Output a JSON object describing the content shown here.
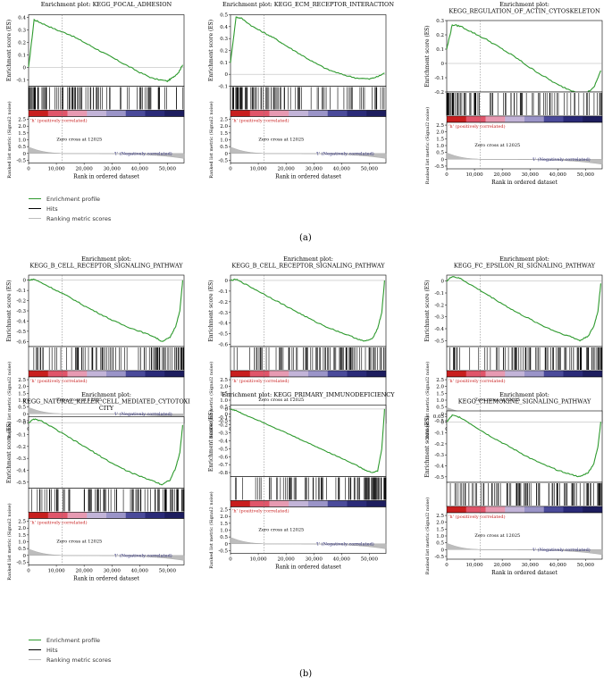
{
  "panel_labels": [
    "(a)",
    "(b)"
  ],
  "legend": {
    "items": [
      {
        "label": "Enrichment profile",
        "color": "#2e9a2e"
      },
      {
        "label": "Hits",
        "color": "#000000"
      },
      {
        "label": "Ranking metric scores",
        "color": "#bdbdbd"
      }
    ]
  },
  "common": {
    "es_ylabel": "Enrichment score (ES)",
    "rank_ylabel": "Ranked list metric (Signal2 noise)",
    "xlabel": "Rank in ordered dataset",
    "pos_label": "'h' (positively correlated)",
    "neg_label": "'l' (Negatively correlated)",
    "zero_cross": "Zero cross at 12025",
    "x_ticks": [
      "0",
      "10,000",
      "20,000",
      "30,000",
      "40,000",
      "50,000"
    ],
    "rank_ticks": [
      "2.5",
      "2.0",
      "1.5",
      "1.0",
      "0.5",
      "0",
      "-0.5"
    ]
  },
  "chart_data": [
    {
      "type": "line",
      "title_lines": [
        "Enrichment plot: KEGG_FOCAL_ADHESION"
      ],
      "ylim": [
        -0.15,
        0.42
      ],
      "yticks": [
        0.4,
        0.3,
        0.2,
        0.1,
        0,
        -0.1
      ],
      "x": [
        0,
        2000,
        5000,
        10000,
        15000,
        20000,
        25000,
        30000,
        35000,
        40000,
        45000,
        50000,
        52000,
        54000,
        55500
      ],
      "y": [
        0,
        0.38,
        0.35,
        0.3,
        0.26,
        0.2,
        0.14,
        0.08,
        0.02,
        -0.04,
        -0.09,
        -0.11,
        -0.08,
        -0.04,
        0.02
      ]
    },
    {
      "type": "line",
      "title_lines": [
        "Enrichment plot: KEGG_ECM_RECEPTOR_INTERACTION"
      ],
      "ylim": [
        -0.1,
        0.5
      ],
      "yticks": [
        0.5,
        0.4,
        0.3,
        0.2,
        0.1,
        0,
        -0.1
      ],
      "x": [
        0,
        2000,
        4000,
        8000,
        12000,
        16000,
        20000,
        25000,
        30000,
        35000,
        40000,
        45000,
        50000,
        53000,
        55500
      ],
      "y": [
        0.1,
        0.48,
        0.47,
        0.4,
        0.35,
        0.3,
        0.24,
        0.17,
        0.1,
        0.04,
        0.0,
        -0.03,
        -0.04,
        -0.02,
        0.01
      ]
    },
    {
      "type": "line",
      "title_lines": [
        "Enrichment plot:",
        "KEGG_REGULATION_OF_ACTIN_CYTOSKELETON"
      ],
      "ylim": [
        -0.2,
        0.3
      ],
      "yticks": [
        0.3,
        0.2,
        0.1,
        0,
        -0.1,
        -0.2
      ],
      "x": [
        0,
        2000,
        5000,
        10000,
        15000,
        20000,
        25000,
        30000,
        35000,
        40000,
        45000,
        50000,
        53000,
        55500
      ],
      "y": [
        0.1,
        0.27,
        0.26,
        0.21,
        0.16,
        0.1,
        0.04,
        -0.03,
        -0.09,
        -0.15,
        -0.19,
        -0.21,
        -0.17,
        -0.05
      ]
    },
    {
      "type": "line",
      "title_lines": [
        "Enrichment plot:",
        "KEGG_B_CELL_RECEPTOR_SIGNALING_PATHWAY"
      ],
      "ylim": [
        -0.65,
        0.05
      ],
      "yticks": [
        0,
        -0.1,
        -0.2,
        -0.3,
        -0.4,
        -0.5,
        -0.6
      ],
      "x": [
        0,
        2000,
        5000,
        10000,
        15000,
        20000,
        25000,
        30000,
        35000,
        40000,
        45000,
        48000,
        51000,
        53000,
        54500,
        55500
      ],
      "y": [
        0,
        0.01,
        -0.03,
        -0.1,
        -0.17,
        -0.25,
        -0.32,
        -0.39,
        -0.45,
        -0.5,
        -0.55,
        -0.6,
        -0.56,
        -0.45,
        -0.3,
        0.0
      ]
    },
    {
      "type": "line",
      "title_lines": [
        "Enrichment plot:",
        "KEGG_B_CELL_RECEPTOR_SIGNALING_PATHWAY"
      ],
      "ylim": [
        -0.62,
        0.05
      ],
      "yticks": [
        0,
        -0.1,
        -0.2,
        -0.3,
        -0.4,
        -0.5,
        -0.6
      ],
      "x": [
        0,
        2000,
        5000,
        10000,
        15000,
        20000,
        25000,
        30000,
        35000,
        40000,
        45000,
        48000,
        51000,
        53000,
        54500,
        55500
      ],
      "y": [
        0,
        0.01,
        -0.03,
        -0.1,
        -0.17,
        -0.24,
        -0.31,
        -0.38,
        -0.44,
        -0.49,
        -0.54,
        -0.57,
        -0.55,
        -0.45,
        -0.3,
        0.0
      ]
    },
    {
      "type": "line",
      "title_lines": [
        "Enrichment plot:",
        "KEGG_FC_EPSILON_RI_SIGNALING_PATHWAY"
      ],
      "ylim": [
        -0.55,
        0.05
      ],
      "yticks": [
        0,
        -0.1,
        -0.2,
        -0.3,
        -0.4,
        -0.5
      ],
      "x": [
        0,
        2000,
        5000,
        10000,
        15000,
        20000,
        25000,
        30000,
        35000,
        40000,
        45000,
        48000,
        51000,
        53000,
        54500,
        55500
      ],
      "y": [
        0.0,
        0.04,
        0.02,
        -0.05,
        -0.12,
        -0.19,
        -0.26,
        -0.32,
        -0.38,
        -0.43,
        -0.47,
        -0.5,
        -0.46,
        -0.38,
        -0.25,
        -0.02
      ]
    },
    {
      "type": "line",
      "title_lines": [
        "Enrichment plot:",
        "KEGG_NATURAL_KILLER_CELL_MEDIATED_CYTOTOXI",
        "CITY"
      ],
      "ylim": [
        -0.55,
        0.05
      ],
      "yticks": [
        0,
        -0.1,
        -0.2,
        -0.3,
        -0.4,
        -0.5
      ],
      "x": [
        0,
        2000,
        5000,
        10000,
        15000,
        20000,
        25000,
        30000,
        35000,
        40000,
        45000,
        48000,
        51000,
        53000,
        54500,
        55500
      ],
      "y": [
        0.0,
        0.03,
        0.01,
        -0.06,
        -0.13,
        -0.2,
        -0.27,
        -0.34,
        -0.4,
        -0.45,
        -0.49,
        -0.52,
        -0.48,
        -0.38,
        -0.25,
        -0.02
      ]
    },
    {
      "type": "line",
      "title_lines": [
        "Enrichment plot: KEGG_PRIMARY_IMMUNODEFICIENCY"
      ],
      "ylim": [
        -0.85,
        0.05
      ],
      "yticks": [
        0,
        -0.1,
        -0.2,
        -0.3,
        -0.4,
        -0.5,
        -0.6,
        -0.7,
        -0.8
      ],
      "x": [
        0,
        2000,
        5000,
        10000,
        15000,
        20000,
        25000,
        30000,
        35000,
        40000,
        45000,
        48000,
        51000,
        53000,
        54500,
        55500
      ],
      "y": [
        0,
        -0.02,
        -0.07,
        -0.14,
        -0.22,
        -0.3,
        -0.38,
        -0.46,
        -0.54,
        -0.62,
        -0.7,
        -0.76,
        -0.8,
        -0.78,
        -0.5,
        0.0
      ]
    },
    {
      "type": "line",
      "title_lines": [
        "Enrichment plot:",
        "KEGG_CHEMOKINE_SIGNALING_PATHWAY"
      ],
      "ylim": [
        -0.55,
        0.1
      ],
      "yticks": [
        0.05,
        0,
        -0.1,
        -0.2,
        -0.3,
        -0.4,
        -0.5
      ],
      "x": [
        0,
        2000,
        5000,
        10000,
        15000,
        20000,
        25000,
        30000,
        35000,
        40000,
        45000,
        48000,
        51000,
        53000,
        54500,
        55500
      ],
      "y": [
        0.0,
        0.06,
        0.04,
        -0.04,
        -0.12,
        -0.19,
        -0.26,
        -0.33,
        -0.39,
        -0.44,
        -0.48,
        -0.5,
        -0.46,
        -0.38,
        -0.22,
        0.0
      ]
    }
  ]
}
